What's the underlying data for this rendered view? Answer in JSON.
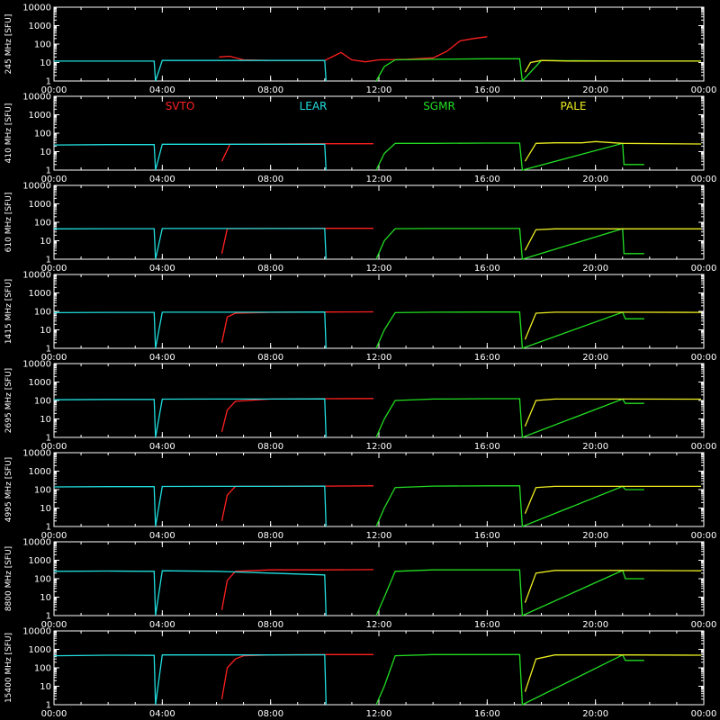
{
  "chart_data": {
    "type": "line",
    "x_unit": "hour",
    "x_range": [
      0,
      24
    ],
    "x_ticks": [
      0,
      4,
      8,
      12,
      16,
      20,
      24
    ],
    "x_tick_labels": [
      "00:00",
      "04:00",
      "08:00",
      "12:00",
      "16:00",
      "20:00",
      "00:00"
    ],
    "y_scale": "log",
    "ylim": [
      1,
      10000
    ],
    "y_ticks": [
      1,
      10,
      100,
      1000,
      10000
    ],
    "y_tick_labels": [
      "1",
      "10",
      "100",
      "1000",
      "10000"
    ],
    "ylabel_unit": "[SFU]",
    "legend": {
      "placement": "inside-second-panel-top",
      "entries": [
        {
          "name": "SVTO",
          "color": "#ff2020"
        },
        {
          "name": "LEAR",
          "color": "#22dddd"
        },
        {
          "name": "SGMR",
          "color": "#22dd22"
        },
        {
          "name": "PALE",
          "color": "#eeee22"
        }
      ]
    },
    "panels": [
      {
        "ylabel": "245 MHz",
        "series": [
          {
            "name": "SVTO",
            "color": "#ff2020",
            "x": [
              6.1,
              6.5,
              7.0,
              8.0,
              9.0,
              10.0,
              10.6,
              11.0,
              11.5,
              12.0,
              13.0,
              14.0,
              14.5,
              15.0,
              15.5,
              16.0
            ],
            "y": [
              20,
              22,
              14,
              13,
              13,
              13,
              35,
              14,
              11,
              14,
              15,
              18,
              40,
              150,
              200,
              250
            ]
          },
          {
            "name": "LEAR",
            "color": "#22dddd",
            "x": [
              0.0,
              2.0,
              3.7,
              3.75,
              4.0,
              6.0,
              8.0,
              10.0,
              10.05
            ],
            "y": [
              12,
              12,
              12,
              1,
              13,
              13,
              13,
              13,
              1
            ]
          },
          {
            "name": "SGMR",
            "color": "#22dd22",
            "x": [
              11.9,
              12.2,
              12.6,
              14.0,
              16.0,
              17.2,
              17.3,
              18.0,
              21.0,
              23.9
            ],
            "y": [
              1,
              6,
              14,
              15,
              16,
              16,
              1,
              13,
              12,
              12
            ]
          },
          {
            "name": "PALE",
            "color": "#eeee22",
            "x": [
              17.4,
              17.6,
              18.0,
              19.0,
              20.0,
              21.0,
              22.0,
              23.9
            ],
            "y": [
              3,
              10,
              13,
              12,
              12,
              12,
              12,
              12
            ]
          }
        ]
      },
      {
        "ylabel": "410 MHz",
        "series": [
          {
            "name": "SVTO",
            "color": "#ff2020",
            "x": [
              6.2,
              6.5,
              8.0,
              10.0,
              11.8
            ],
            "y": [
              3,
              25,
              26,
              27,
              27
            ]
          },
          {
            "name": "LEAR",
            "color": "#22dddd",
            "x": [
              0.0,
              2.0,
              3.7,
              3.75,
              4.0,
              6.0,
              8.0,
              10.0,
              10.05
            ],
            "y": [
              23,
              24,
              24,
              1,
              25,
              25,
              25,
              25,
              1
            ]
          },
          {
            "name": "SGMR",
            "color": "#22dd22",
            "x": [
              11.9,
              12.2,
              12.6,
              14.0,
              16.0,
              17.2,
              17.3,
              21.0,
              21.05,
              21.8
            ],
            "y": [
              1,
              8,
              28,
              28,
              29,
              29,
              1,
              28,
              2,
              2
            ]
          },
          {
            "name": "PALE",
            "color": "#eeee22",
            "x": [
              17.4,
              17.8,
              18.5,
              19.5,
              20.0,
              21.0,
              23.9
            ],
            "y": [
              3,
              28,
              30,
              30,
              35,
              28,
              26
            ]
          }
        ]
      },
      {
        "ylabel": "610 MHz",
        "series": [
          {
            "name": "SVTO",
            "color": "#ff2020",
            "x": [
              6.2,
              6.4,
              8.0,
              10.0,
              11.8
            ],
            "y": [
              2,
              45,
              46,
              47,
              47
            ]
          },
          {
            "name": "LEAR",
            "color": "#22dddd",
            "x": [
              0.0,
              2.0,
              3.7,
              3.75,
              4.0,
              6.0,
              8.0,
              10.0,
              10.05
            ],
            "y": [
              44,
              45,
              45,
              1,
              46,
              46,
              46,
              46,
              1
            ]
          },
          {
            "name": "SGMR",
            "color": "#22dd22",
            "x": [
              11.9,
              12.2,
              12.6,
              14.0,
              16.0,
              17.2,
              17.3,
              21.0,
              21.05,
              21.8
            ],
            "y": [
              1,
              10,
              45,
              46,
              46,
              46,
              1,
              45,
              2,
              2
            ]
          },
          {
            "name": "PALE",
            "color": "#eeee22",
            "x": [
              17.4,
              17.8,
              18.5,
              20.0,
              21.0,
              23.9
            ],
            "y": [
              3,
              40,
              44,
              44,
              44,
              44
            ]
          }
        ]
      },
      {
        "ylabel": "1415 MHz",
        "series": [
          {
            "name": "SVTO",
            "color": "#ff2020",
            "x": [
              6.2,
              6.4,
              6.7,
              8.0,
              10.0,
              11.8
            ],
            "y": [
              2,
              50,
              80,
              88,
              92,
              95
            ]
          },
          {
            "name": "LEAR",
            "color": "#22dddd",
            "x": [
              0.0,
              2.0,
              3.7,
              3.75,
              4.0,
              6.0,
              8.0,
              10.0,
              10.05
            ],
            "y": [
              85,
              88,
              88,
              1,
              90,
              90,
              90,
              92,
              1
            ]
          },
          {
            "name": "SGMR",
            "color": "#22dd22",
            "x": [
              11.9,
              12.2,
              12.6,
              14.0,
              16.0,
              17.2,
              17.3,
              21.0,
              21.1,
              21.8
            ],
            "y": [
              1,
              10,
              85,
              90,
              92,
              93,
              1,
              90,
              40,
              40
            ]
          },
          {
            "name": "PALE",
            "color": "#eeee22",
            "x": [
              17.4,
              17.8,
              18.5,
              20.0,
              21.0,
              23.9
            ],
            "y": [
              3,
              80,
              90,
              90,
              90,
              88
            ]
          }
        ]
      },
      {
        "ylabel": "2695 MHz",
        "series": [
          {
            "name": "SVTO",
            "color": "#ff2020",
            "x": [
              6.2,
              6.4,
              6.7,
              8.0,
              10.0,
              11.8
            ],
            "y": [
              2,
              30,
              90,
              120,
              125,
              128
            ]
          },
          {
            "name": "LEAR",
            "color": "#22dddd",
            "x": [
              0.0,
              2.0,
              3.7,
              3.75,
              4.0,
              6.0,
              8.0,
              10.0,
              10.05
            ],
            "y": [
              110,
              115,
              115,
              1,
              118,
              120,
              120,
              122,
              1
            ]
          },
          {
            "name": "SGMR",
            "color": "#22dd22",
            "x": [
              11.9,
              12.2,
              12.6,
              14.0,
              16.0,
              17.2,
              17.3,
              21.0,
              21.1,
              21.8
            ],
            "y": [
              1,
              10,
              100,
              120,
              125,
              125,
              1,
              120,
              70,
              70
            ]
          },
          {
            "name": "PALE",
            "color": "#eeee22",
            "x": [
              17.4,
              17.8,
              18.5,
              20.0,
              21.0,
              23.9
            ],
            "y": [
              4,
              100,
              120,
              120,
              120,
              118
            ]
          }
        ]
      },
      {
        "ylabel": "4995 MHz",
        "series": [
          {
            "name": "SVTO",
            "color": "#ff2020",
            "x": [
              6.2,
              6.4,
              6.7,
              8.0,
              10.0,
              11.8
            ],
            "y": [
              2,
              50,
              150,
              150,
              155,
              160
            ]
          },
          {
            "name": "LEAR",
            "color": "#22dddd",
            "x": [
              0.0,
              2.0,
              3.7,
              3.75,
              4.0,
              6.0,
              8.0,
              10.0,
              10.05
            ],
            "y": [
              140,
              145,
              145,
              1,
              148,
              150,
              150,
              155,
              1
            ]
          },
          {
            "name": "SGMR",
            "color": "#22dd22",
            "x": [
              11.9,
              12.2,
              12.6,
              14.0,
              16.0,
              17.2,
              17.3,
              21.0,
              21.1,
              21.8
            ],
            "y": [
              1,
              10,
              130,
              155,
              160,
              160,
              1,
              150,
              100,
              100
            ]
          },
          {
            "name": "PALE",
            "color": "#eeee22",
            "x": [
              17.4,
              17.8,
              18.5,
              20.0,
              21.0,
              23.9
            ],
            "y": [
              5,
              130,
              150,
              150,
              150,
              150
            ]
          }
        ]
      },
      {
        "ylabel": "8800 MHz",
        "series": [
          {
            "name": "SVTO",
            "color": "#ff2020",
            "x": [
              6.2,
              6.4,
              6.7,
              8.0,
              10.0,
              11.8
            ],
            "y": [
              2,
              80,
              250,
              300,
              300,
              310
            ]
          },
          {
            "name": "LEAR",
            "color": "#22dddd",
            "x": [
              0.0,
              2.0,
              3.7,
              3.75,
              4.0,
              6.0,
              8.0,
              10.0,
              10.05
            ],
            "y": [
              250,
              260,
              250,
              1,
              270,
              250,
              200,
              160,
              1
            ]
          },
          {
            "name": "SGMR",
            "color": "#22dd22",
            "x": [
              11.9,
              12.2,
              12.6,
              14.0,
              16.0,
              17.2,
              17.3,
              21.0,
              21.1,
              21.8
            ],
            "y": [
              1,
              10,
              250,
              300,
              300,
              300,
              1,
              280,
              100,
              100
            ]
          },
          {
            "name": "PALE",
            "color": "#eeee22",
            "x": [
              17.4,
              17.8,
              18.5,
              20.0,
              21.0,
              23.9
            ],
            "y": [
              5,
              200,
              280,
              280,
              280,
              270
            ]
          }
        ]
      },
      {
        "ylabel": "15400 MHz",
        "series": [
          {
            "name": "SVTO",
            "color": "#ff2020",
            "x": [
              6.2,
              6.4,
              6.7,
              7.0,
              8.0,
              10.0,
              11.8
            ],
            "y": [
              2,
              100,
              300,
              450,
              500,
              520,
              520
            ]
          },
          {
            "name": "LEAR",
            "color": "#22dddd",
            "x": [
              0.0,
              2.0,
              3.7,
              3.75,
              4.0,
              6.0,
              8.0,
              10.0,
              10.05
            ],
            "y": [
              450,
              480,
              470,
              1,
              500,
              500,
              500,
              510,
              1
            ]
          },
          {
            "name": "SGMR",
            "color": "#22dd22",
            "x": [
              11.9,
              12.2,
              12.6,
              14.0,
              16.0,
              17.2,
              17.3,
              21.0,
              21.1,
              21.8
            ],
            "y": [
              1,
              10,
              450,
              520,
              520,
              520,
              1,
              500,
              250,
              250
            ]
          },
          {
            "name": "PALE",
            "color": "#eeee22",
            "x": [
              17.4,
              17.8,
              18.5,
              20.0,
              21.0,
              23.9
            ],
            "y": [
              5,
              300,
              500,
              500,
              500,
              480
            ]
          }
        ]
      }
    ]
  }
}
